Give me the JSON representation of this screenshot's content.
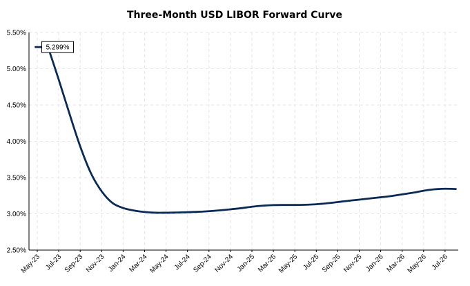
{
  "chart_data": {
    "type": "line",
    "title": "Three-Month USD LIBOR Forward Curve",
    "xlabel": "",
    "ylabel": "",
    "ylim": [
      2.5,
      5.5
    ],
    "yticks": [
      "2.50%",
      "3.00%",
      "3.50%",
      "4.00%",
      "4.50%",
      "5.00%",
      "5.50%"
    ],
    "grid": true,
    "x_tick_labels": [
      "May-23",
      "Jul-23",
      "Sep-23",
      "Nov-23",
      "Jan-24",
      "Mar-24",
      "May-24",
      "Jul-24",
      "Sep-24",
      "Nov-24",
      "Jan-25",
      "Mar-25",
      "May-25",
      "Jul-25",
      "Sep-25",
      "Nov-25",
      "Jan-26",
      "Mar-26",
      "May-26",
      "Jul-26"
    ],
    "series": [
      {
        "name": "",
        "color": "#0b2a55",
        "x": [
          "Jun-23",
          "Jul-23",
          "Aug-23",
          "Sep-23",
          "Oct-23",
          "Nov-23",
          "Dec-23",
          "Jan-24",
          "Feb-24",
          "Mar-24",
          "Apr-24",
          "May-24",
          "Jun-24",
          "Jul-24",
          "Aug-24",
          "Sep-24",
          "Oct-24",
          "Nov-24",
          "Dec-24",
          "Jan-25",
          "Feb-25",
          "Mar-25",
          "Apr-25",
          "May-25",
          "Jun-25",
          "Jul-25",
          "Aug-25",
          "Sep-25",
          "Oct-25",
          "Nov-25",
          "Dec-25",
          "Jan-26",
          "Feb-26",
          "Mar-26",
          "Apr-26",
          "May-26",
          "Jun-26",
          "Jul-26",
          "Aug-26"
        ],
        "values": [
          5.299,
          4.85,
          4.38,
          3.93,
          3.56,
          3.31,
          3.15,
          3.08,
          3.045,
          3.025,
          3.015,
          3.015,
          3.018,
          3.022,
          3.028,
          3.036,
          3.048,
          3.062,
          3.078,
          3.098,
          3.112,
          3.12,
          3.122,
          3.122,
          3.125,
          3.132,
          3.145,
          3.162,
          3.18,
          3.195,
          3.212,
          3.228,
          3.245,
          3.268,
          3.29,
          3.318,
          3.338,
          3.345,
          3.342
        ]
      }
    ],
    "annotations": [
      {
        "text": "5.299%",
        "x": "Jun-23",
        "y": 5.299
      }
    ]
  }
}
